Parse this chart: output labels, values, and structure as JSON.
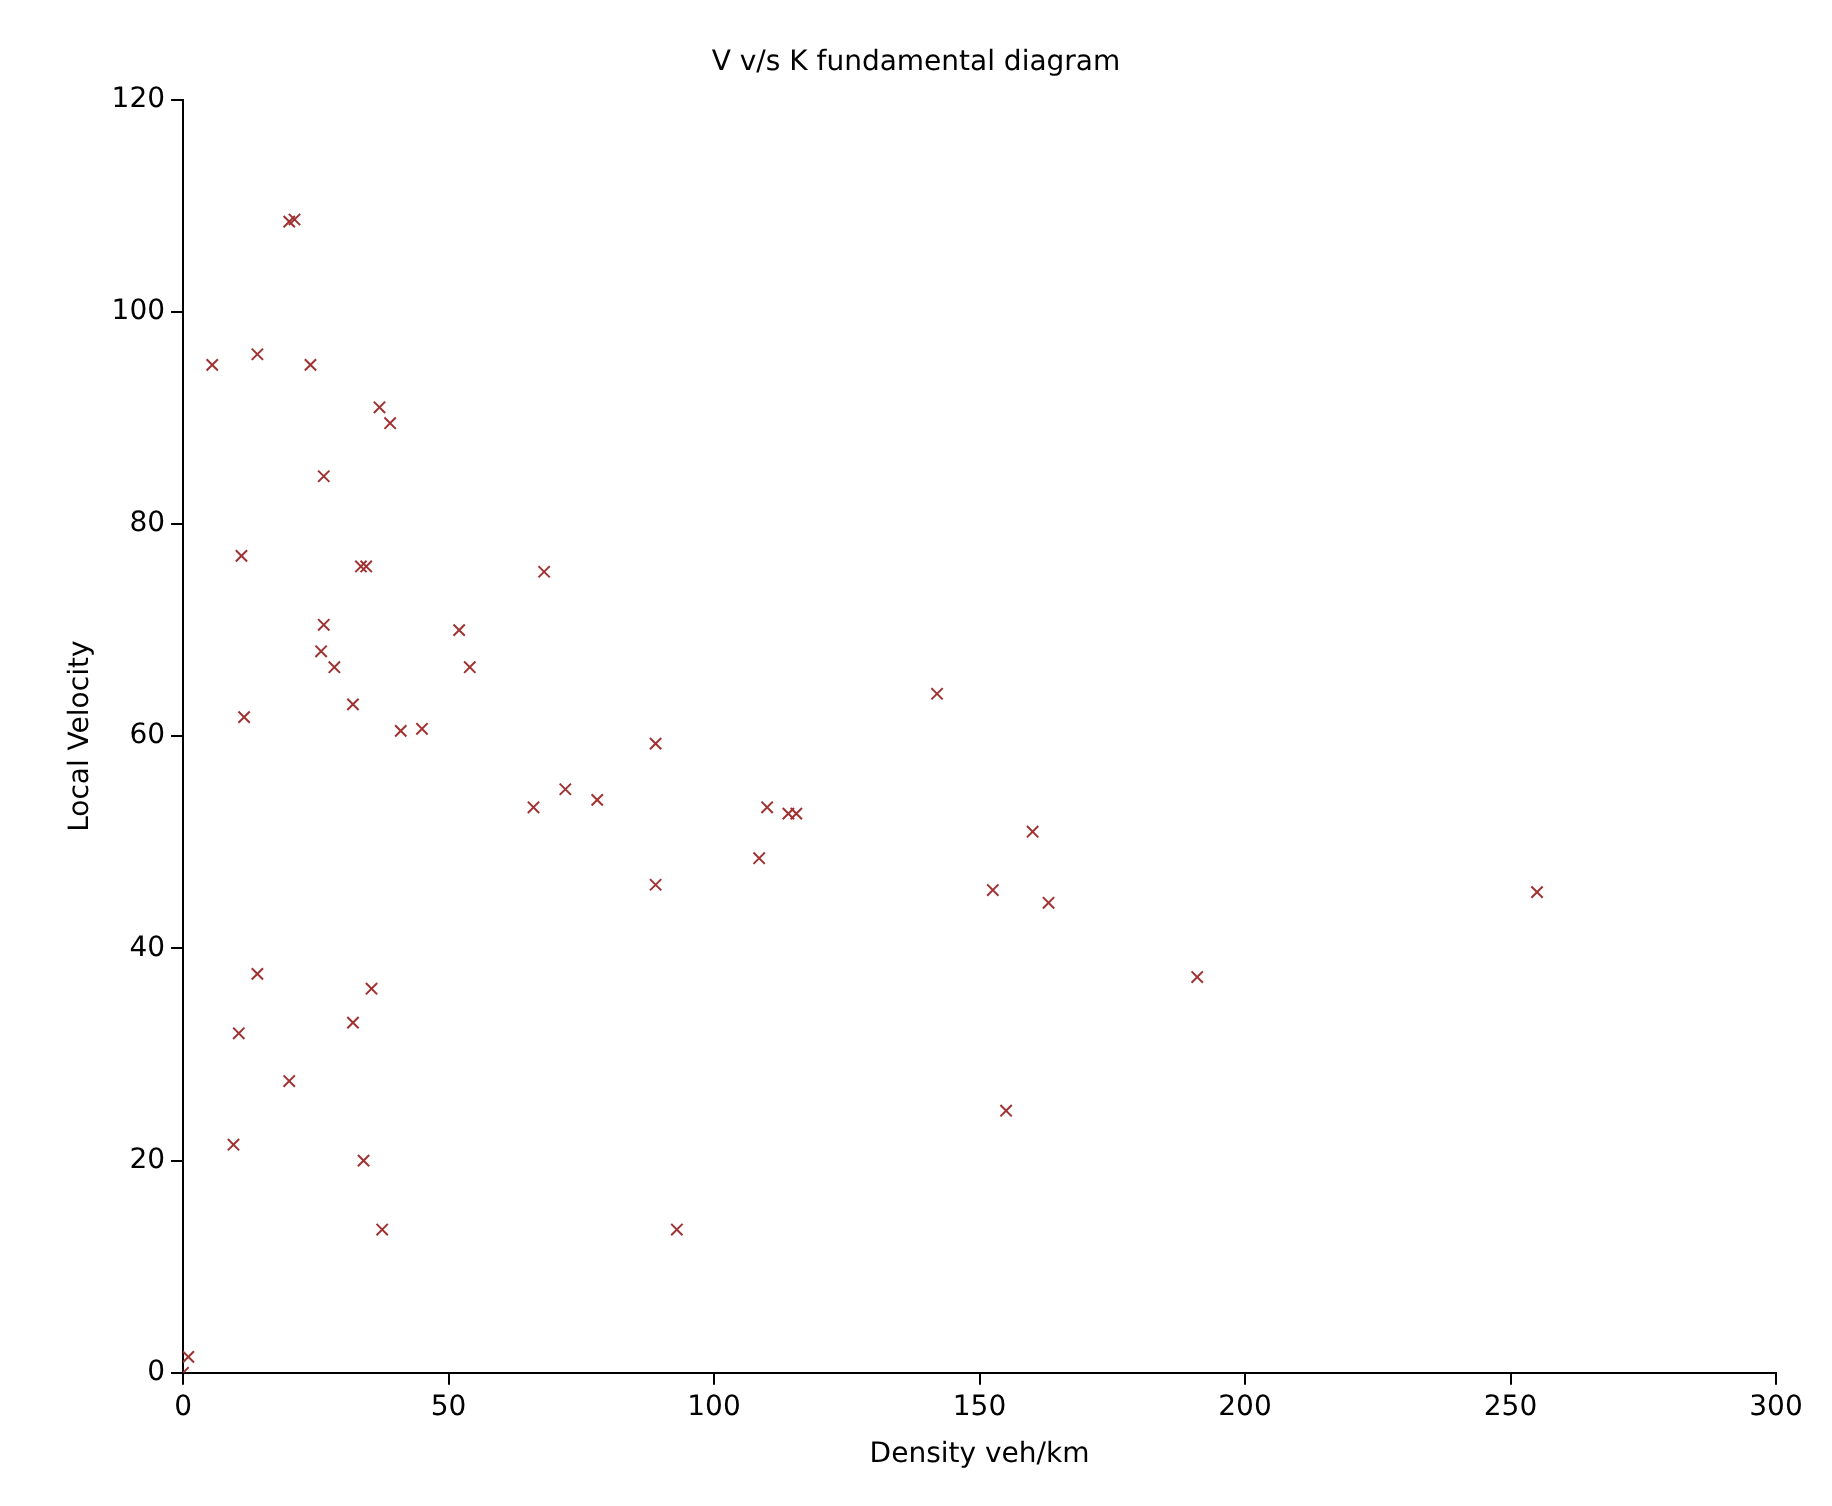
{
  "chart_data": {
    "type": "scatter",
    "title": "V v/s K fundamental diagram",
    "xlabel": "Density veh/km",
    "ylabel": "Local Velocity",
    "xlim": [
      0,
      300
    ],
    "xticks": [
      0,
      50,
      100,
      150,
      200,
      250,
      300
    ],
    "ylim": [
      0,
      120
    ],
    "yticks": [
      0,
      20,
      40,
      60,
      80,
      100,
      120
    ],
    "grid": false,
    "legend": false,
    "marker": "cross",
    "series": [
      {
        "color": "#a03232",
        "x": [
          20,
          21,
          5.5,
          14,
          24,
          37,
          39,
          26.5,
          11,
          33.5,
          34.5,
          68,
          26.5,
          52,
          26,
          28.5,
          54,
          32,
          11.5,
          41,
          45,
          142,
          89,
          66,
          72,
          78,
          110,
          114,
          115.5,
          160,
          108.5,
          89,
          152.5,
          163,
          255,
          191,
          14,
          35.5,
          10.5,
          32,
          20,
          155,
          9.5,
          34,
          37.5,
          93,
          1,
          0
        ],
        "values": [
          108.5,
          108.7,
          95,
          96,
          95,
          91,
          89.5,
          84.5,
          77,
          76,
          76,
          75.5,
          70.5,
          70,
          68,
          66.5,
          66.5,
          63,
          61.8,
          60.5,
          60.7,
          64,
          59.3,
          53.3,
          55,
          54,
          53.3,
          52.7,
          52.7,
          51,
          48.5,
          46,
          45.5,
          44.3,
          45.3,
          37.3,
          37.6,
          36.2,
          32,
          33,
          27.5,
          24.7,
          21.5,
          20,
          13.5,
          13.5,
          1.5,
          0
        ]
      }
    ]
  }
}
